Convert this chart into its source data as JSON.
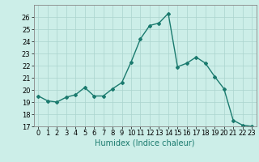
{
  "x": [
    0,
    1,
    2,
    3,
    4,
    5,
    6,
    7,
    8,
    9,
    10,
    11,
    12,
    13,
    14,
    15,
    16,
    17,
    18,
    19,
    20,
    21,
    22,
    23
  ],
  "y": [
    19.5,
    19.1,
    19.0,
    19.4,
    19.6,
    20.2,
    19.5,
    19.5,
    20.1,
    20.6,
    22.3,
    24.2,
    25.3,
    25.5,
    26.3,
    21.9,
    22.2,
    22.7,
    22.2,
    21.1,
    20.1,
    17.5,
    17.1,
    17.0
  ],
  "line_color": "#1a7a6e",
  "marker": "D",
  "marker_size": 2,
  "bg_color": "#cceee8",
  "grid_color": "#aad4ce",
  "xlabel": "Humidex (Indice chaleur)",
  "ylim": [
    17,
    27
  ],
  "xlim": [
    -0.5,
    23.5
  ],
  "yticks": [
    17,
    18,
    19,
    20,
    21,
    22,
    23,
    24,
    25,
    26
  ],
  "xticks": [
    0,
    1,
    2,
    3,
    4,
    5,
    6,
    7,
    8,
    9,
    10,
    11,
    12,
    13,
    14,
    15,
    16,
    17,
    18,
    19,
    20,
    21,
    22,
    23
  ],
  "xlabel_fontsize": 7,
  "tick_fontsize": 6,
  "line_width": 1.0
}
